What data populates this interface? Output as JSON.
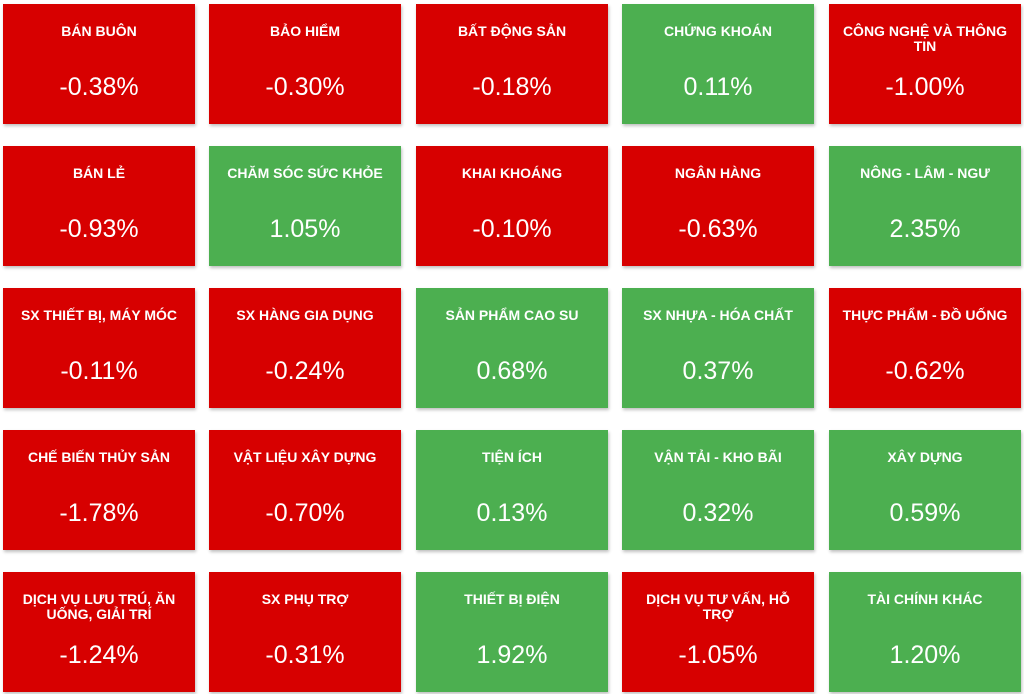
{
  "colors": {
    "down": "#d70000",
    "up": "#4caf50",
    "text": "#ffffff"
  },
  "sectors": [
    {
      "name": "BÁN BUÔN",
      "change": "-0.38%",
      "direction": "down"
    },
    {
      "name": "BẢO HIỂM",
      "change": "-0.30%",
      "direction": "down"
    },
    {
      "name": "BẤT ĐỘNG SẢN",
      "change": "-0.18%",
      "direction": "down"
    },
    {
      "name": "CHỨNG KHOÁN",
      "change": "0.11%",
      "direction": "up"
    },
    {
      "name": "CÔNG NGHỆ VÀ THÔNG TIN",
      "change": "-1.00%",
      "direction": "down"
    },
    {
      "name": "BÁN LẺ",
      "change": "-0.93%",
      "direction": "down"
    },
    {
      "name": "CHĂM SÓC SỨC KHỎE",
      "change": "1.05%",
      "direction": "up"
    },
    {
      "name": "KHAI KHOÁNG",
      "change": "-0.10%",
      "direction": "down"
    },
    {
      "name": "NGÂN HÀNG",
      "change": "-0.63%",
      "direction": "down"
    },
    {
      "name": "NÔNG - LÂM - NGƯ",
      "change": "2.35%",
      "direction": "up"
    },
    {
      "name": "SX THIẾT BỊ, MÁY MÓC",
      "change": "-0.11%",
      "direction": "down"
    },
    {
      "name": "SX HÀNG GIA DỤNG",
      "change": "-0.24%",
      "direction": "down"
    },
    {
      "name": "SẢN PHẨM CAO SU",
      "change": "0.68%",
      "direction": "up"
    },
    {
      "name": "SX NHỰA - HÓA CHẤT",
      "change": "0.37%",
      "direction": "up"
    },
    {
      "name": "THỰC PHẨM - ĐỒ UỐNG",
      "change": "-0.62%",
      "direction": "down"
    },
    {
      "name": "CHẾ BIẾN THỦY SẢN",
      "change": "-1.78%",
      "direction": "down"
    },
    {
      "name": "VẬT LIỆU XÂY DỰNG",
      "change": "-0.70%",
      "direction": "down"
    },
    {
      "name": "TIỆN ÍCH",
      "change": "0.13%",
      "direction": "up"
    },
    {
      "name": "VẬN TẢI - KHO BÃI",
      "change": "0.32%",
      "direction": "up"
    },
    {
      "name": "XÂY DỰNG",
      "change": "0.59%",
      "direction": "up"
    },
    {
      "name": "DỊCH VỤ LƯU TRÚ, ĂN UỐNG, GIẢI TRÍ",
      "change": "-1.24%",
      "direction": "down"
    },
    {
      "name": "SX PHỤ TRỢ",
      "change": "-0.31%",
      "direction": "down"
    },
    {
      "name": "THIẾT BỊ ĐIỆN",
      "change": "1.92%",
      "direction": "up"
    },
    {
      "name": "DỊCH VỤ TƯ VẤN, HỖ TRỢ",
      "change": "-1.05%",
      "direction": "down"
    },
    {
      "name": "TÀI CHÍNH KHÁC",
      "change": "1.20%",
      "direction": "up"
    }
  ]
}
